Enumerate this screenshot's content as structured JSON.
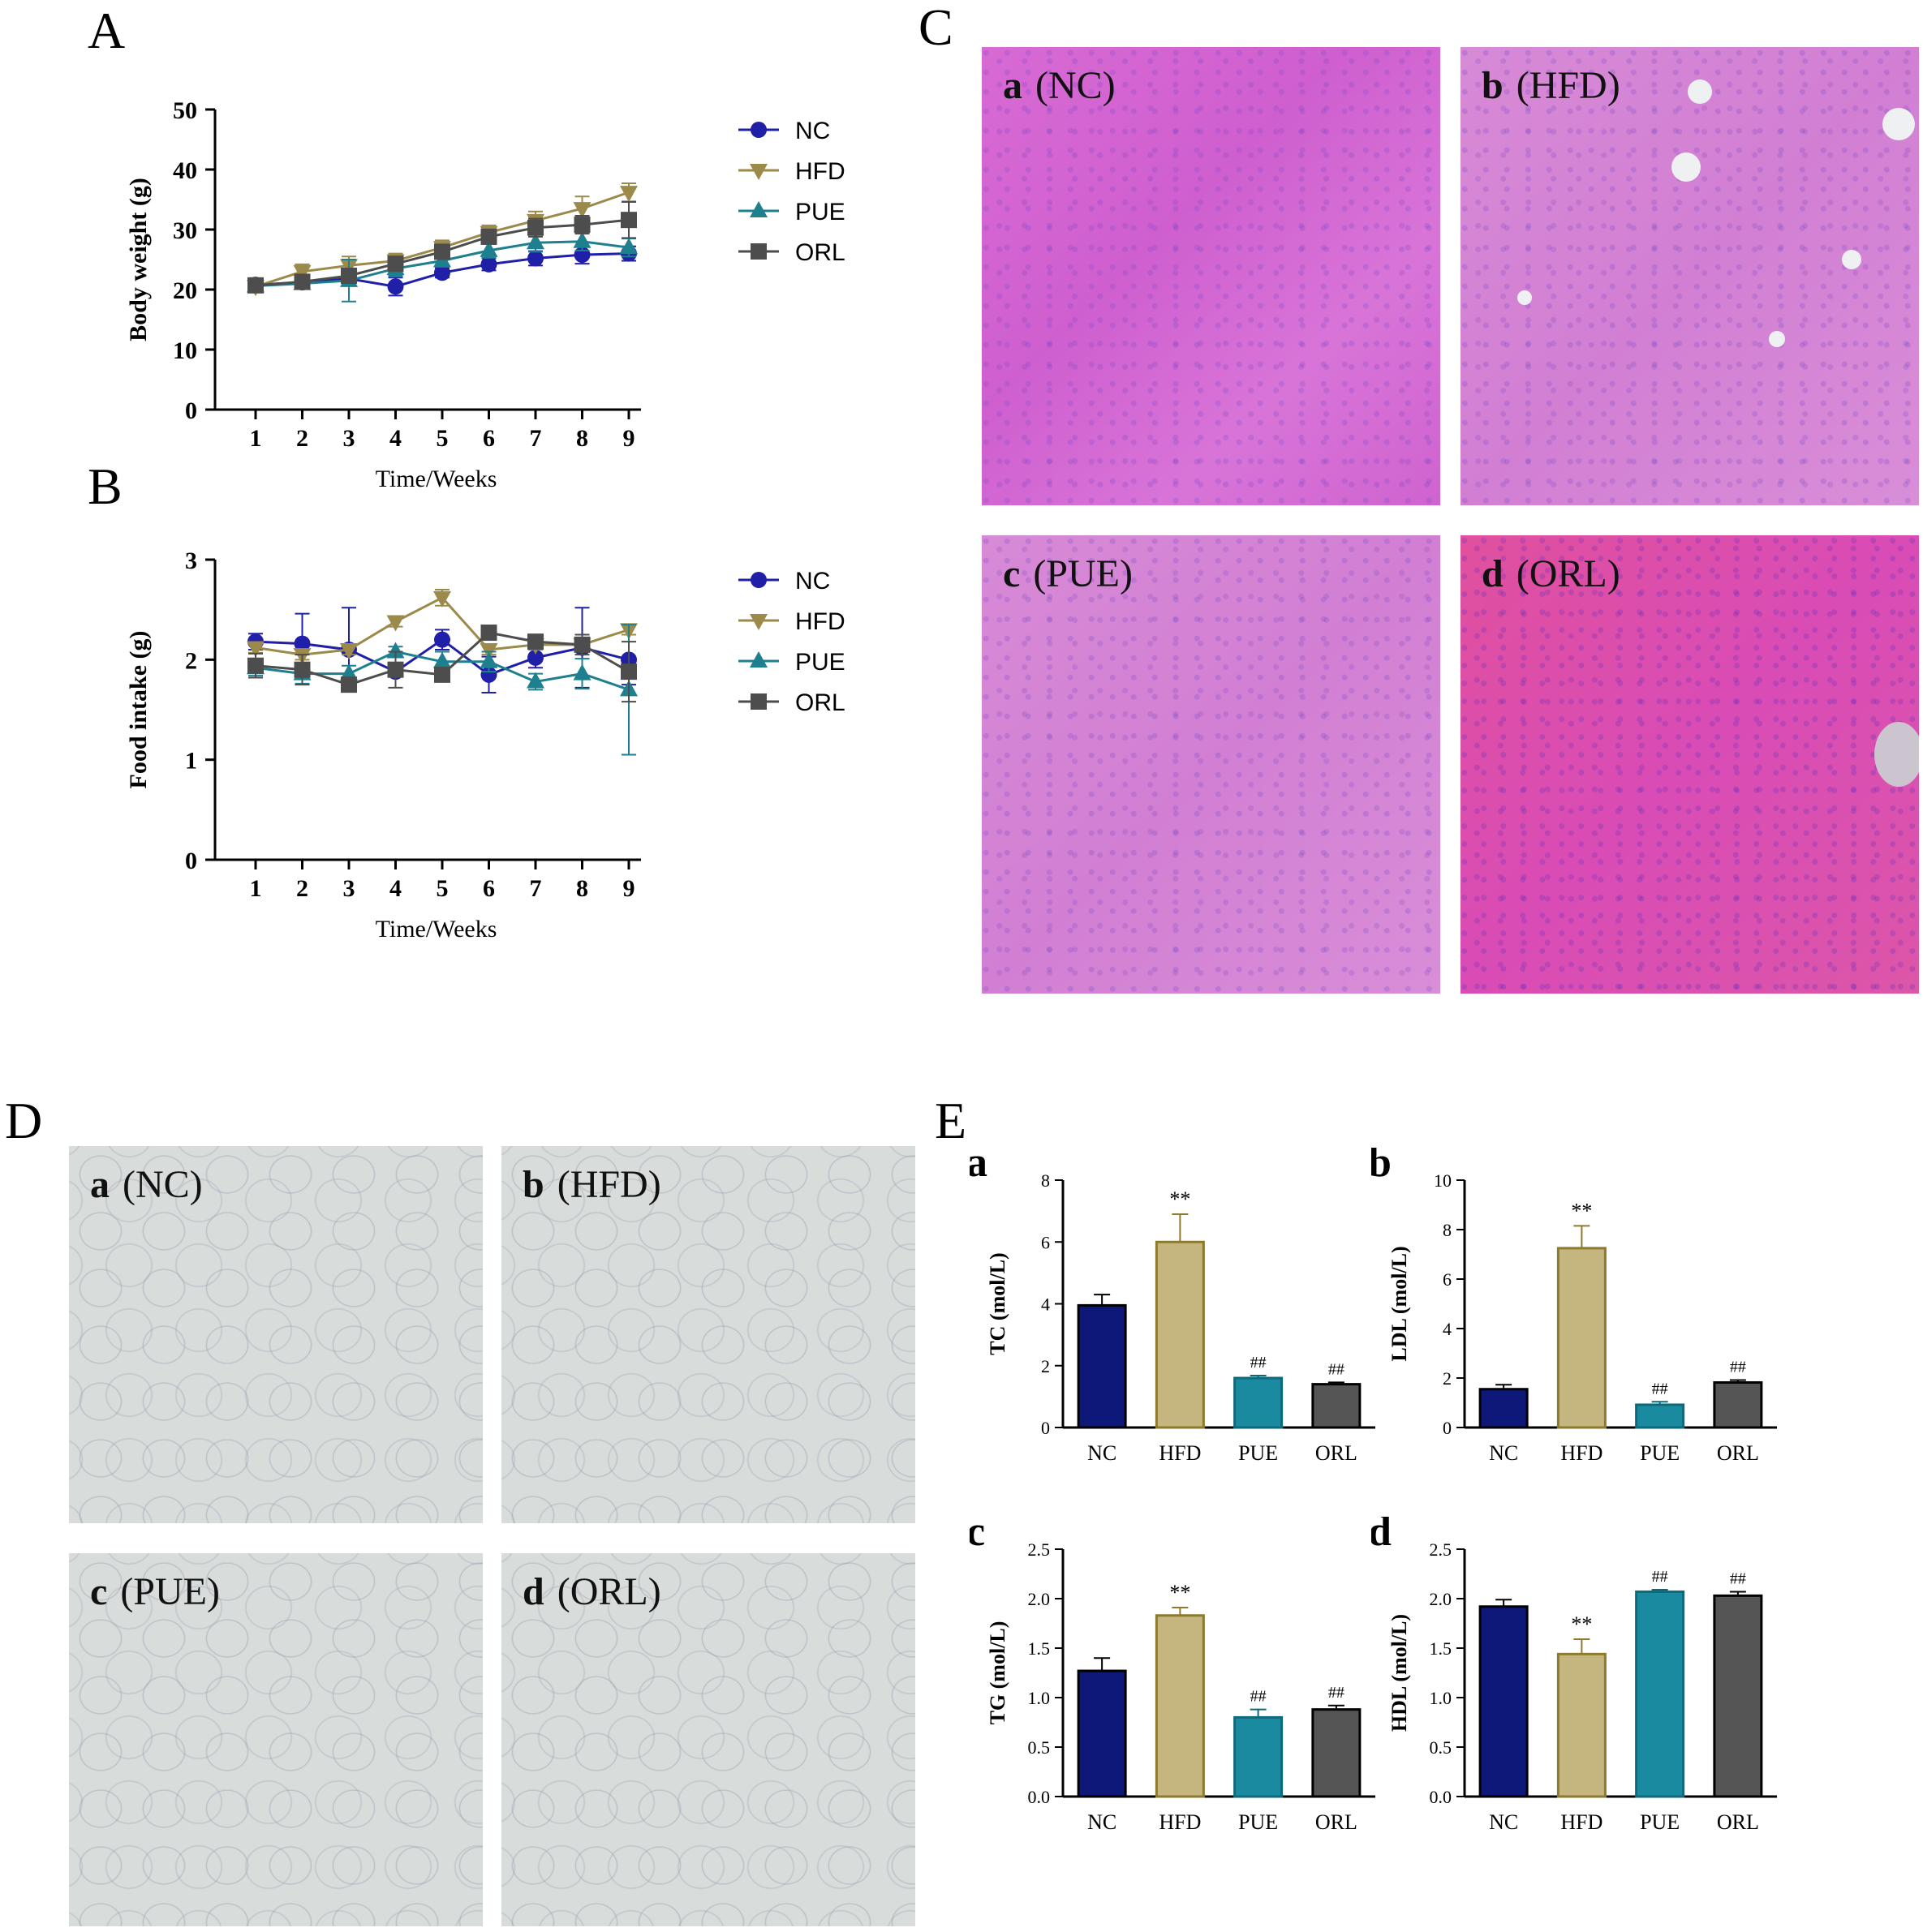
{
  "panels": {
    "A": "A",
    "B": "B",
    "C": "C",
    "D": "D",
    "E": "E"
  },
  "colors": {
    "NC": "#1f1fa8",
    "HFD": "#9c8a4a",
    "PUE": "#1e7f8f",
    "ORL": "#4d4d4d",
    "bar_NC": "#0e1878",
    "bar_HFD": "#c4b67e",
    "bar_PUE": "#1a8aa0",
    "bar_ORL": "#555555",
    "edge_HFD": "#8e7a2e",
    "edge_PUE": "#0e6a7a"
  },
  "legend": [
    "NC",
    "HFD",
    "PUE",
    "ORL"
  ],
  "micrographs": {
    "liver": [
      {
        "letter": "a",
        "label": "(NC)"
      },
      {
        "letter": "b",
        "label": "(HFD)"
      },
      {
        "letter": "c",
        "label": "(PUE)"
      },
      {
        "letter": "d",
        "label": "(ORL)"
      }
    ],
    "adipose": [
      {
        "letter": "a",
        "label": "(NC)"
      },
      {
        "letter": "b",
        "label": "(HFD)"
      },
      {
        "letter": "c",
        "label": "(PUE)"
      },
      {
        "letter": "d",
        "label": "(ORL)"
      }
    ]
  },
  "chart_data": [
    {
      "id": "A",
      "type": "line",
      "xlabel": "Time/Weeks",
      "ylabel": "Body weight (g)",
      "x": [
        1,
        2,
        3,
        4,
        5,
        6,
        7,
        8,
        9
      ],
      "ylim": [
        0,
        50
      ],
      "yticks": [
        0,
        10,
        20,
        30,
        40,
        50
      ],
      "series": [
        {
          "name": "NC",
          "marker": "circle",
          "values": [
            20.8,
            21.2,
            21.8,
            20.5,
            22.8,
            24.2,
            25.2,
            25.8,
            26.0
          ],
          "err": [
            0.8,
            0.8,
            1.2,
            1.5,
            0.8,
            1.0,
            1.2,
            1.5,
            1.2
          ]
        },
        {
          "name": "HFD",
          "marker": "triangle-down",
          "values": [
            20.5,
            23.0,
            24.0,
            24.8,
            27.0,
            29.5,
            31.5,
            33.5,
            36.2
          ],
          "err": [
            0.8,
            1.2,
            1.5,
            1.2,
            1.2,
            1.2,
            1.5,
            2.0,
            1.5
          ]
        },
        {
          "name": "PUE",
          "marker": "triangle-up",
          "values": [
            20.6,
            21.0,
            21.5,
            23.5,
            24.8,
            26.5,
            27.8,
            28.0,
            27.0
          ],
          "err": [
            0.8,
            0.8,
            3.5,
            1.2,
            1.0,
            1.2,
            1.5,
            1.5,
            1.5
          ]
        },
        {
          "name": "ORL",
          "marker": "square",
          "values": [
            20.7,
            21.3,
            22.3,
            24.3,
            26.3,
            28.8,
            30.3,
            30.8,
            31.6
          ],
          "err": [
            0.8,
            0.8,
            1.0,
            1.2,
            1.2,
            1.2,
            1.5,
            1.5,
            3.0
          ]
        }
      ]
    },
    {
      "id": "B",
      "type": "line",
      "xlabel": "Time/Weeks",
      "ylabel": "Food intake (g)",
      "x": [
        1,
        2,
        3,
        4,
        5,
        6,
        7,
        8,
        9
      ],
      "ylim": [
        0,
        3
      ],
      "yticks": [
        0,
        1,
        2,
        3
      ],
      "series": [
        {
          "name": "NC",
          "marker": "circle",
          "values": [
            2.18,
            2.16,
            2.1,
            1.88,
            2.2,
            1.85,
            2.02,
            2.12,
            2.0
          ],
          "err": [
            0.08,
            0.3,
            0.42,
            0.05,
            0.1,
            0.18,
            0.1,
            0.4,
            0.25
          ]
        },
        {
          "name": "HFD",
          "marker": "triangle-down",
          "values": [
            2.12,
            2.05,
            2.1,
            2.38,
            2.62,
            2.1,
            2.15,
            2.15,
            2.3
          ],
          "err": [
            0.05,
            0.05,
            0.05,
            0.05,
            0.08,
            0.05,
            0.05,
            0.05,
            0.05
          ]
        },
        {
          "name": "PUE",
          "marker": "triangle-up",
          "values": [
            1.92,
            1.86,
            1.86,
            2.08,
            1.98,
            1.98,
            1.78,
            1.86,
            1.7
          ],
          "err": [
            0.08,
            0.1,
            0.08,
            0.05,
            0.1,
            0.1,
            0.08,
            0.15,
            0.65
          ]
        },
        {
          "name": "ORL",
          "marker": "square",
          "values": [
            1.94,
            1.9,
            1.75,
            1.9,
            1.85,
            2.27,
            2.18,
            2.15,
            1.88
          ],
          "err": [
            0.12,
            0.15,
            0.05,
            0.18,
            0.07,
            0.05,
            0.05,
            0.1,
            0.3
          ]
        }
      ]
    },
    {
      "id": "Ea",
      "type": "bar",
      "letter": "a",
      "ylabel": "TC  (mol/L)",
      "categories": [
        "NC",
        "HFD",
        "PUE",
        "ORL"
      ],
      "values": [
        3.95,
        6.0,
        1.6,
        1.4
      ],
      "err": [
        0.35,
        0.9,
        0.08,
        0.06
      ],
      "marks": [
        "",
        "**",
        "##",
        "##"
      ],
      "ylim": [
        0,
        8
      ],
      "yticks": [
        "0",
        "2",
        "4",
        "6",
        "8"
      ]
    },
    {
      "id": "Eb",
      "type": "bar",
      "letter": "b",
      "ylabel": "LDL (mol/L)",
      "categories": [
        "NC",
        "HFD",
        "PUE",
        "ORL"
      ],
      "values": [
        1.55,
        7.25,
        0.92,
        1.82
      ],
      "err": [
        0.18,
        0.9,
        0.12,
        0.1
      ],
      "marks": [
        "",
        "**",
        "##",
        "##"
      ],
      "ylim": [
        0,
        10
      ],
      "yticks": [
        "0",
        "2",
        "4",
        "6",
        "8",
        "10"
      ]
    },
    {
      "id": "Ec",
      "type": "bar",
      "letter": "c",
      "ylabel": "TG  (mol/L)",
      "categories": [
        "NC",
        "HFD",
        "PUE",
        "ORL"
      ],
      "values": [
        1.27,
        1.83,
        0.8,
        0.88
      ],
      "err": [
        0.13,
        0.08,
        0.08,
        0.04
      ],
      "marks": [
        "",
        "**",
        "##",
        "##"
      ],
      "ylim": [
        0,
        2.5
      ],
      "yticks": [
        "0.0",
        "0.5",
        "1.0",
        "1.5",
        "2.0",
        "2.5"
      ]
    },
    {
      "id": "Ed",
      "type": "bar",
      "letter": "d",
      "ylabel": "HDL (mol/L)",
      "categories": [
        "NC",
        "HFD",
        "PUE",
        "ORL"
      ],
      "values": [
        1.92,
        1.44,
        2.07,
        2.03
      ],
      "err": [
        0.07,
        0.15,
        0.02,
        0.04
      ],
      "marks": [
        "",
        "**",
        "##",
        "##"
      ],
      "ylim": [
        0,
        2.5
      ],
      "yticks": [
        "0.0",
        "0.5",
        "1.0",
        "1.5",
        "2.0",
        "2.5"
      ]
    }
  ]
}
